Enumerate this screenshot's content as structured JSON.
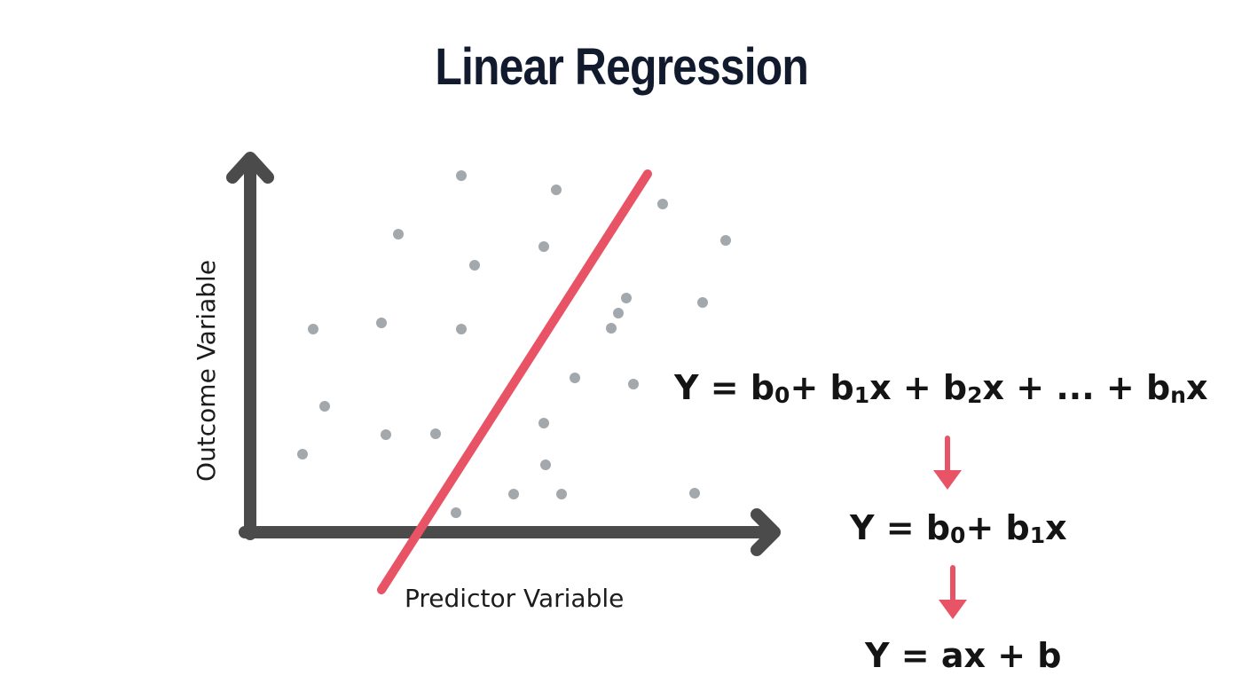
{
  "title": "Linear Regression",
  "axes": {
    "x_label": "Predictor Variable",
    "y_label": "Outcome Variable"
  },
  "colors": {
    "axis": "#4b4b4b",
    "points": "#a3a8ad",
    "regression_line": "#e85466",
    "flow_arrow": "#e85466",
    "title": "#121a2e"
  },
  "formulas": [
    {
      "terms": [
        {
          "t": "Y = b"
        },
        {
          "s": "0"
        },
        {
          "t": "+ b"
        },
        {
          "s": "1"
        },
        {
          "t": "x + b"
        },
        {
          "s": "2"
        },
        {
          "t": "x + ... + b"
        },
        {
          "s": "n"
        },
        {
          "t": "x"
        }
      ]
    },
    {
      "terms": [
        {
          "t": "Y = b"
        },
        {
          "s": "0"
        },
        {
          "t": "+ b"
        },
        {
          "s": "1"
        },
        {
          "t": "x"
        }
      ]
    },
    {
      "terms": [
        {
          "t": "Y = ax + b"
        }
      ]
    }
  ],
  "flow_arrows": [
    {
      "name": "arrow-down-1"
    },
    {
      "name": "arrow-down-2"
    }
  ]
}
